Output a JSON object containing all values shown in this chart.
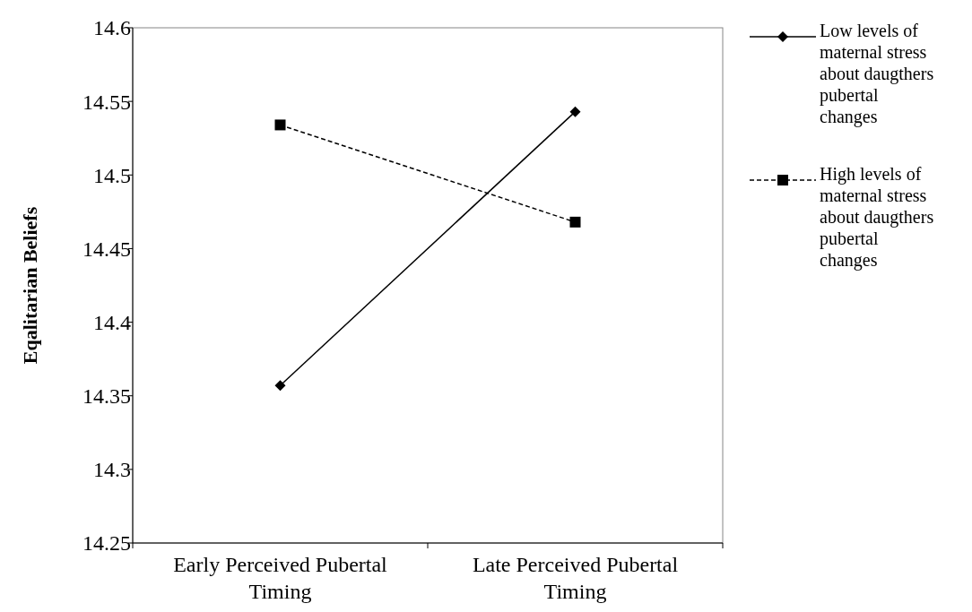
{
  "chart_data": {
    "type": "line",
    "ylabel": "Eqalitarian Beliefs",
    "categories": [
      "Early Perceived Pubertal Timing",
      "Late Perceived Pubertal Timing"
    ],
    "ylim": [
      14.25,
      14.6
    ],
    "yticks": [
      14.25,
      14.3,
      14.35,
      14.4,
      14.45,
      14.5,
      14.55,
      14.6
    ],
    "grid": false,
    "legend": "right",
    "series": [
      {
        "name": "Low levels of maternal stress about daugthers pubertal changes",
        "color": "#000000",
        "values": [
          14.357,
          14.543
        ],
        "marker": "diamond",
        "line_style": "solid"
      },
      {
        "name": "High levels of maternal stress about daugthers pubertal changes",
        "color": "#000000",
        "values": [
          14.534,
          14.468
        ],
        "marker": "square",
        "line_style": "dashed"
      }
    ]
  }
}
